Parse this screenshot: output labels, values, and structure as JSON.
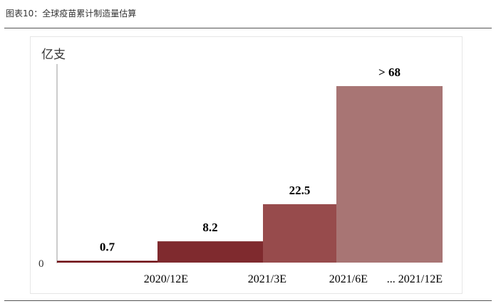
{
  "caption": "图表10：全球疫苗累计制造量估算",
  "chart_data": {
    "type": "bar",
    "ylabel": "亿支",
    "y_zero_label": "0",
    "ylim": [
      0,
      68
    ],
    "grid": false,
    "legend": "none",
    "tick_labels": [
      "2020/12E",
      "2021/3E",
      "2021/6E",
      "... 2021/12E"
    ],
    "bars": [
      {
        "start": 0,
        "end": 1,
        "value": 0.7,
        "label": "0.7",
        "color": "#6e0c12"
      },
      {
        "start": 1,
        "end": 2,
        "value": 8.2,
        "label": "8.2",
        "color": "#7f2a2e"
      },
      {
        "start": 2,
        "end": 3,
        "value": 22.5,
        "label": "22.5",
        "color": "#974b4c"
      },
      {
        "start": 3,
        "end": 4,
        "value": 68,
        "label": "> 68",
        "color": "#a87574"
      }
    ]
  }
}
